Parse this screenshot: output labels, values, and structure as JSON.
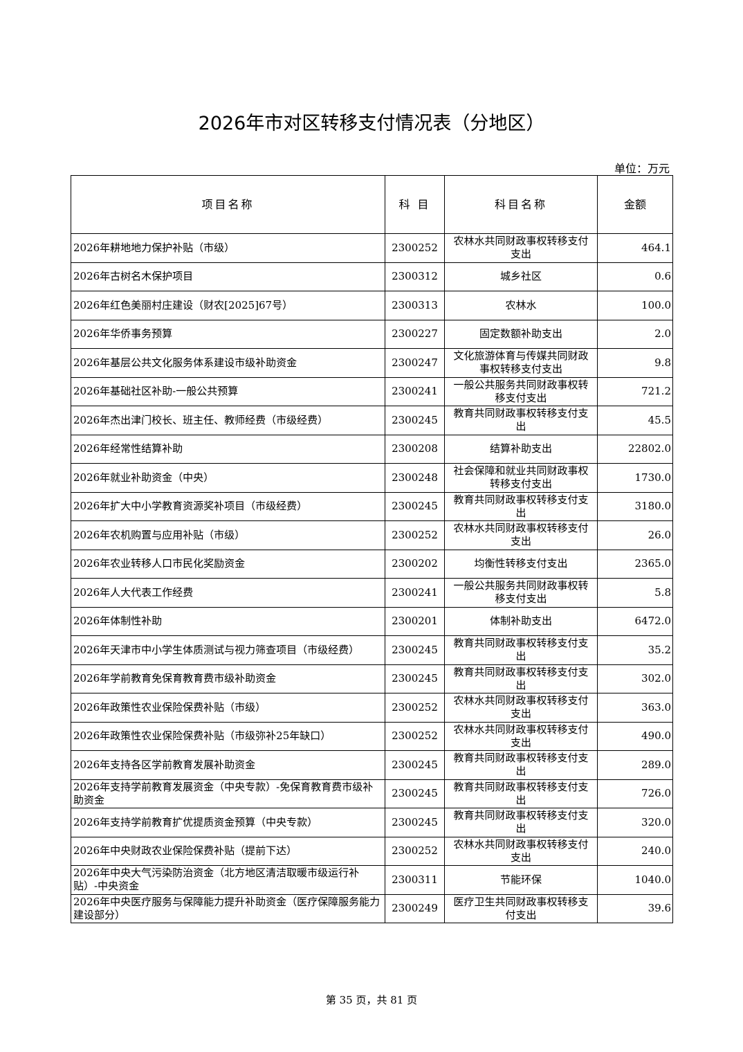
{
  "title": "2026年市对区转移支付情况表（分地区）",
  "unit": "单位：万元",
  "headers": [
    "项目名称",
    "科 目",
    "科目名称",
    "金额"
  ],
  "rows": [
    [
      "2026年耕地地力保护补贴（市级）",
      "2300252",
      "农林水共同财政事权转移支付支出",
      "464.1"
    ],
    [
      "2026年古树名木保护项目",
      "2300312",
      "城乡社区",
      "0.6"
    ],
    [
      "2026年红色美丽村庄建设（财农[2025]67号）",
      "2300313",
      "农林水",
      "100.0"
    ],
    [
      "2026年华侨事务预算",
      "2300227",
      "固定数额补助支出",
      "2.0"
    ],
    [
      "2026年基层公共文化服务体系建设市级补助资金",
      "2300247",
      "文化旅游体育与传媒共同财政事权转移支付支出",
      "9.8"
    ],
    [
      "2026年基础社区补助-一般公共预算",
      "2300241",
      "一般公共服务共同财政事权转移支付支出",
      "721.2"
    ],
    [
      "2026年杰出津门校长、班主任、教师经费（市级经费）",
      "2300245",
      "教育共同财政事权转移支付支出",
      "45.5"
    ],
    [
      "2026年经常性结算补助",
      "2300208",
      "结算补助支出",
      "22802.0"
    ],
    [
      "2026年就业补助资金（中央）",
      "2300248",
      "社会保障和就业共同财政事权转移支付支出",
      "1730.0"
    ],
    [
      "2026年扩大中小学教育资源奖补项目（市级经费）",
      "2300245",
      "教育共同财政事权转移支付支出",
      "3180.0"
    ],
    [
      "2026年农机购置与应用补贴（市级）",
      "2300252",
      "农林水共同财政事权转移支付支出",
      "26.0"
    ],
    [
      "2026年农业转移人口市民化奖励资金",
      "2300202",
      "均衡性转移支付支出",
      "2365.0"
    ],
    [
      "2026年人大代表工作经费",
      "2300241",
      "一般公共服务共同财政事权转移支付支出",
      "5.8"
    ],
    [
      "2026年体制性补助",
      "2300201",
      "体制补助支出",
      "6472.0"
    ],
    [
      "2026年天津市中小学生体质测试与视力筛查项目（市级经费）",
      "2300245",
      "教育共同财政事权转移支付支出",
      "35.2"
    ],
    [
      "2026年学前教育免保育教育费市级补助资金",
      "2300245",
      "教育共同财政事权转移支付支出",
      "302.0"
    ],
    [
      "2026年政策性农业保险保费补贴（市级）",
      "2300252",
      "农林水共同财政事权转移支付支出",
      "363.0"
    ],
    [
      "2026年政策性农业保险保费补贴（市级弥补25年缺口）",
      "2300252",
      "农林水共同财政事权转移支付支出",
      "490.0"
    ],
    [
      "2026年支持各区学前教育发展补助资金",
      "2300245",
      "教育共同财政事权转移支付支出",
      "289.0"
    ],
    [
      "2026年支持学前教育发展资金（中央专款）-免保育教育费市级补助资金",
      "2300245",
      "教育共同财政事权转移支付支出",
      "726.0"
    ],
    [
      "2026年支持学前教育扩优提质资金预算（中央专款）",
      "2300245",
      "教育共同财政事权转移支付支出",
      "320.0"
    ],
    [
      "2026年中央财政农业保险保费补贴（提前下达）",
      "2300252",
      "农林水共同财政事权转移支付支出",
      "240.0"
    ],
    [
      "2026年中央大气污染防治资金（北方地区清洁取暖市级运行补贴）-中央资金",
      "2300311",
      "节能环保",
      "1040.0"
    ],
    [
      "2026年中央医疗服务与保障能力提升补助资金（医疗保障服务能力建设部分）",
      "2300249",
      "医疗卫生共同财政事权转移支付支出",
      "39.6"
    ]
  ],
  "footer": "第 35 页，共 81 页"
}
